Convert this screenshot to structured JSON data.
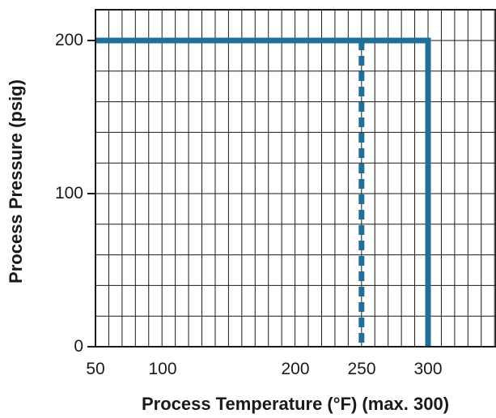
{
  "chart_data": {
    "type": "line",
    "xlabel": "Process Temperature (°F) (max. 300)",
    "ylabel": "Process Pressure (psig)",
    "x_ticks": [
      "50",
      "100",
      "200",
      "250",
      "300"
    ],
    "y_ticks": [
      "0",
      "100",
      "200"
    ],
    "xlim": [
      50,
      340
    ],
    "ylim": [
      0,
      220
    ],
    "grid": true,
    "series": [
      {
        "style": "solid",
        "color": "#1f6f99",
        "x": [
          50,
          300,
          300
        ],
        "y": [
          200,
          200,
          0
        ]
      },
      {
        "style": "dashed",
        "color": "#1f6f99",
        "x": [
          250,
          250
        ],
        "y": [
          200,
          0
        ]
      }
    ]
  }
}
